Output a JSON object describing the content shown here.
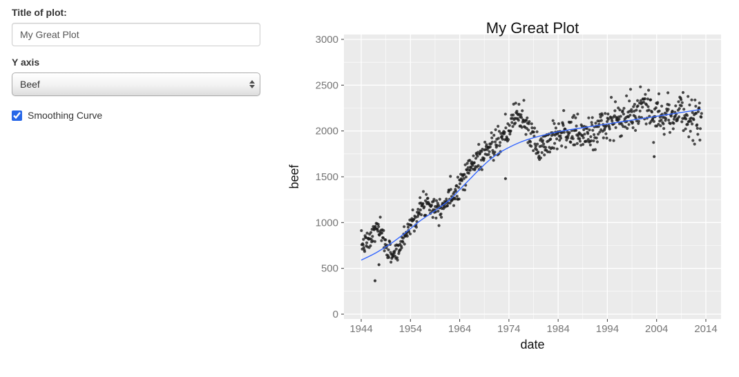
{
  "sidebar": {
    "title_label": "Title of plot:",
    "title_input_value": "My Great Plot",
    "yaxis_label": "Y axis",
    "yaxis_selected": "Beef",
    "smoothing_label": "Smoothing Curve",
    "smoothing_checked": true,
    "accent_color": "#2767e8"
  },
  "chart_data": {
    "type": "scatter",
    "title": "My Great Plot",
    "xlabel": "date",
    "ylabel": "beef",
    "x_ticks": [
      1944,
      1954,
      1964,
      1974,
      1984,
      1994,
      2004,
      2014
    ],
    "y_ticks": [
      0,
      500,
      1000,
      1500,
      2000,
      2500,
      3000
    ],
    "xlim": [
      1940.5,
      2016.8
    ],
    "ylim": [
      0,
      3000
    ],
    "grid": "on",
    "legend": "none",
    "panel_bg": "#EBEBEB",
    "grid_color": "#FFFFFF",
    "tick_color": "#333333",
    "axis_text_color": "#757575",
    "title_color": "#111111",
    "point_color": "#1a1a1a",
    "x_start": 1944.0,
    "x_end": 2013.2,
    "points_per_year": 12,
    "mean_anchors": [
      [
        1944.0,
        760
      ],
      [
        1945.5,
        780
      ],
      [
        1947.3,
        960
      ],
      [
        1948.5,
        800
      ],
      [
        1950.0,
        660
      ],
      [
        1951.5,
        680
      ],
      [
        1953.0,
        890
      ],
      [
        1955.0,
        1070
      ],
      [
        1957.5,
        1240
      ],
      [
        1959.0,
        1160
      ],
      [
        1961.0,
        1210
      ],
      [
        1963.0,
        1330
      ],
      [
        1965.0,
        1540
      ],
      [
        1967.0,
        1650
      ],
      [
        1969.0,
        1760
      ],
      [
        1971.0,
        1850
      ],
      [
        1973.0,
        1900
      ],
      [
        1974.5,
        2060
      ],
      [
        1975.5,
        2190
      ],
      [
        1977.0,
        2130
      ],
      [
        1978.5,
        1940
      ],
      [
        1980.0,
        1800
      ],
      [
        1981.5,
        1870
      ],
      [
        1983.0,
        1970
      ],
      [
        1985.0,
        2010
      ],
      [
        1987.0,
        1970
      ],
      [
        1989.0,
        1950
      ],
      [
        1991.0,
        1980
      ],
      [
        1993.0,
        2060
      ],
      [
        1995.0,
        2110
      ],
      [
        1997.0,
        2120
      ],
      [
        1999.0,
        2180
      ],
      [
        2001.0,
        2230
      ],
      [
        2003.0,
        2260
      ],
      [
        2005.0,
        2170
      ],
      [
        2007.0,
        2180
      ],
      [
        2009.0,
        2200
      ],
      [
        2011.0,
        2130
      ],
      [
        2013.0,
        2150
      ]
    ],
    "noise": {
      "base_sd": 55,
      "sd_growth_per_year": 0.8,
      "seed": 7
    },
    "outliers": [
      [
        1946.8,
        365
      ],
      [
        1947.6,
        540
      ],
      [
        1973.3,
        1480
      ],
      [
        2003.5,
        1720
      ]
    ],
    "smooth_line": {
      "color": "#3366FF",
      "anchors": [
        [
          1944,
          590
        ],
        [
          1947,
          670
        ],
        [
          1950,
          770
        ],
        [
          1953,
          890
        ],
        [
          1956,
          1020
        ],
        [
          1959,
          1130
        ],
        [
          1962,
          1250
        ],
        [
          1964,
          1360
        ],
        [
          1966,
          1470
        ],
        [
          1968,
          1580
        ],
        [
          1970,
          1680
        ],
        [
          1972,
          1760
        ],
        [
          1974,
          1820
        ],
        [
          1976,
          1870
        ],
        [
          1978,
          1910
        ],
        [
          1980,
          1940
        ],
        [
          1983,
          1980
        ],
        [
          1986,
          2010
        ],
        [
          1989,
          2035
        ],
        [
          1992,
          2060
        ],
        [
          1995,
          2085
        ],
        [
          1998,
          2110
        ],
        [
          2001,
          2135
        ],
        [
          2004,
          2160
        ],
        [
          2007,
          2185
        ],
        [
          2010,
          2210
        ],
        [
          2013,
          2235
        ]
      ]
    }
  }
}
